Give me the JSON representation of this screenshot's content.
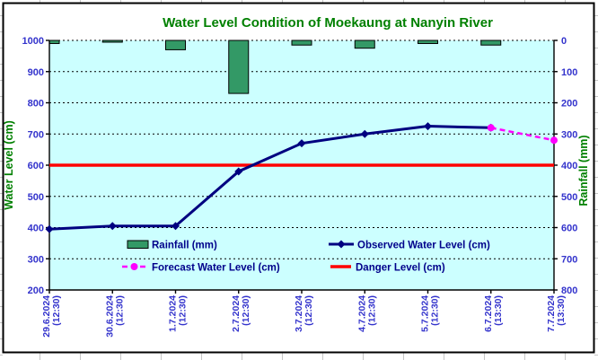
{
  "colors": {
    "plot_background": "#CCFFFF",
    "chart_background": "#FFFFFF",
    "frame_border": "#000000",
    "title_text": "#008000",
    "axis_title_text": "#008000",
    "axis_tick_text": "#3333CC",
    "legend_text": "#00008B",
    "rainfall_bar": "#339966",
    "observed_line": "#000080",
    "forecast_line": "#FF00FF",
    "danger_line": "#FF0000",
    "gridline": "#000000"
  },
  "chart_data": {
    "type": "combo",
    "title": "Water Level Condition of Moekaung at Nanyin River",
    "categories": [
      "29.6.2024 (12:30)",
      "30.6.2024 (12:30)",
      "1.7.2024 (12:30)",
      "2.7.2024 (12:30)",
      "3.7.2024 (12:30)",
      "4.7.2024 (12:30)",
      "5.7.2024 (12:30)",
      "6.7.2024 (13:30)",
      "7.7.2024 (13:30)"
    ],
    "series": [
      {
        "name": "Rainfall (mm)",
        "type": "bar",
        "yaxis": "right",
        "color": "#339966",
        "values": [
          10,
          0,
          30,
          170,
          15,
          25,
          10,
          15,
          null
        ]
      },
      {
        "name": "Observed Water Level (cm)",
        "type": "line",
        "yaxis": "left",
        "color": "#000080",
        "marker": "diamond",
        "values": [
          395,
          405,
          405,
          580,
          670,
          700,
          725,
          720,
          null
        ]
      },
      {
        "name": "Forecast Water Level (cm)",
        "type": "line",
        "yaxis": "left",
        "color": "#FF00FF",
        "line_style": "dashed",
        "marker": "circle",
        "values": [
          null,
          null,
          null,
          null,
          null,
          null,
          null,
          720,
          680
        ]
      },
      {
        "name": "Danger Level (cm)",
        "type": "line",
        "yaxis": "left",
        "color": "#FF0000",
        "values": [
          600,
          600,
          600,
          600,
          600,
          600,
          600,
          600,
          600
        ]
      }
    ],
    "left_axis": {
      "label": "Water Level (cm)",
      "min": 200,
      "max": 1000,
      "step": 100,
      "ticks": [
        1000,
        900,
        800,
        700,
        600,
        500,
        400,
        300,
        200
      ]
    },
    "right_axis": {
      "label": "Rainfall (mm)",
      "min": 0,
      "max": 800,
      "step": 100,
      "direction": "inverted",
      "ticks": [
        0,
        100,
        200,
        300,
        400,
        500,
        600,
        700,
        800
      ]
    },
    "grid": true,
    "legend_position": "bottom-inside"
  },
  "legend": {
    "items": [
      {
        "label": "Rainfall (mm)",
        "swatch": "bar"
      },
      {
        "label": "Observed Water Level (cm)",
        "swatch": "line-diamond"
      },
      {
        "label": "Forecast Water Level (cm)",
        "swatch": "dashed-circle"
      },
      {
        "label": "Danger Level (cm)",
        "swatch": "line"
      }
    ]
  }
}
